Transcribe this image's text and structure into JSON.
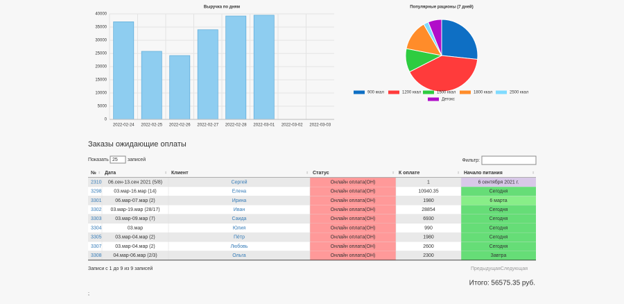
{
  "chart_data": [
    {
      "type": "bar",
      "title": "Выручка по дням",
      "categories": [
        "2022-02-24",
        "2022-02-25",
        "2022-02-26",
        "2022-02-27",
        "2022-02-28",
        "2022-03-01",
        "2022-03-02",
        "2022-03-03"
      ],
      "values": [
        37000,
        25800,
        24200,
        34000,
        39200,
        39500,
        0,
        0
      ],
      "color": "#8ecdf0",
      "ylim": [
        0,
        40000
      ],
      "yticks": [
        0,
        5000,
        10000,
        15000,
        20000,
        25000,
        30000,
        35000,
        40000
      ],
      "grid": true
    },
    {
      "type": "pie",
      "title": "Популярные рационы (7 дней)",
      "categories": [
        "900 ккал",
        "1200 ккал",
        "1500 ккал",
        "1800 ккал",
        "2500 ккал",
        "Детокс"
      ],
      "values": [
        26.7,
        40.8,
        10.6,
        13.6,
        2.2,
        6.1
      ],
      "colors": [
        "#0e6fc4",
        "#ff3b3b",
        "#2ecc40",
        "#ff8c2a",
        "#7fdbff",
        "#b10dc9"
      ]
    }
  ],
  "section_title": "Заказы ожидающие оплаты",
  "controls": {
    "show": "Показать",
    "page_size": "25",
    "entries": "записей",
    "filter": "Фильтр:"
  },
  "table": {
    "columns": [
      "№",
      "Дата",
      "Клиент",
      "Статус",
      "К оплате",
      "Начало питания"
    ],
    "rows": [
      [
        "2310",
        "06.сен-13.сен 2021 (5/8)",
        "Сергей",
        "Онлайн оплата(ОН)",
        "1",
        "6 сентября 2021 г."
      ],
      [
        "3298",
        "03.мар-16.мар (14)",
        "Елена",
        "Онлайн оплата(ОН)",
        "10940.35",
        "Сегодня"
      ],
      [
        "3301",
        "06.мар-07.мар (2)",
        "Ирина",
        "Онлайн оплата(ОН)",
        "1980",
        "6 марта"
      ],
      [
        "3302",
        "03.мар-19.мар (28/17)",
        "Иван",
        "Онлайн оплата(ОН)",
        "28854",
        "Сегодня"
      ],
      [
        "3303",
        "03.мар-09.мар (7)",
        "Саида",
        "Онлайн оплата(ОН)",
        "6930",
        "Сегодня"
      ],
      [
        "3304",
        "03.мар",
        "Юлия",
        "Онлайн оплата(ОН)",
        "990",
        "Сегодня"
      ],
      [
        "3305",
        "03.мар-04.мар (2)",
        "Пётр",
        "Онлайн оплата(ОН)",
        "1980",
        "Сегодня"
      ],
      [
        "3307",
        "03.мар-04.мар (2)",
        "Любовь",
        "Онлайн оплата(ОН)",
        "2600",
        "Сегодня"
      ],
      [
        "3308",
        "04.мар-06.мар (2/3)",
        "Ольга",
        "Онлайн оплата(ОН)",
        "2300",
        "Завтра"
      ]
    ]
  },
  "footer": {
    "info": "Записи с 1 до 9 из 9 записей",
    "prev": "Предыдущая",
    "next": "Следующая",
    "total": "Итого: 56575.35 руб.",
    "semicolon": ";"
  }
}
